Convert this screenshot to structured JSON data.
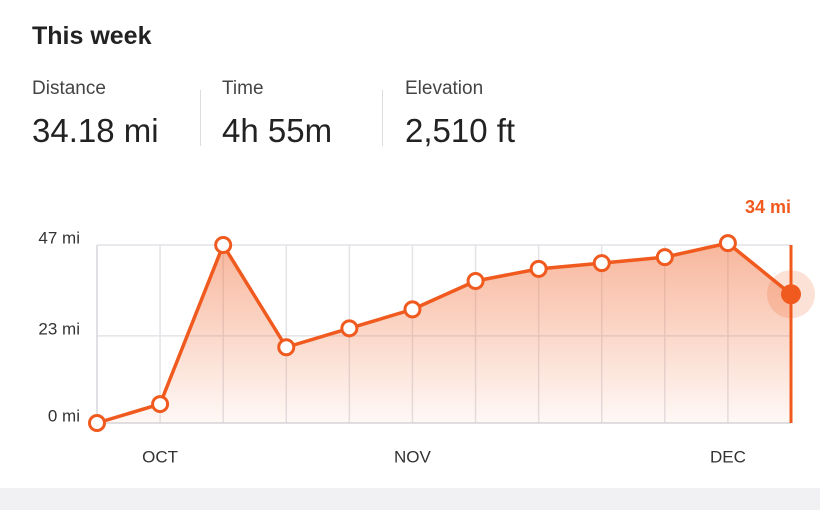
{
  "header": {
    "title": "This week"
  },
  "stats": [
    {
      "label": "Distance",
      "value": "34.18 mi"
    },
    {
      "label": "Time",
      "value": "4h 55m"
    },
    {
      "label": "Elevation",
      "value": "2,510 ft"
    }
  ],
  "chart_data": {
    "type": "line",
    "categories": [
      null,
      "OCT",
      null,
      null,
      null,
      "NOV",
      null,
      null,
      null,
      null,
      "DEC",
      null
    ],
    "series": [
      {
        "name": "Distance",
        "color": "#f05a1e",
        "values": [
          0,
          5,
          47,
          20,
          25,
          30,
          37.5,
          40.7,
          42.2,
          43.8,
          47.5,
          34
        ],
        "value_labels": [
          null,
          null,
          null,
          null,
          null,
          null,
          null,
          null,
          null,
          null,
          null,
          "34 mi"
        ]
      }
    ],
    "ylim": [
      0,
      47
    ],
    "yticks": [
      {
        "value": 0,
        "label": "0 mi"
      },
      {
        "value": 23,
        "label": "23 mi"
      },
      {
        "value": 47,
        "label": "47 mi"
      }
    ],
    "grid": true
  }
}
